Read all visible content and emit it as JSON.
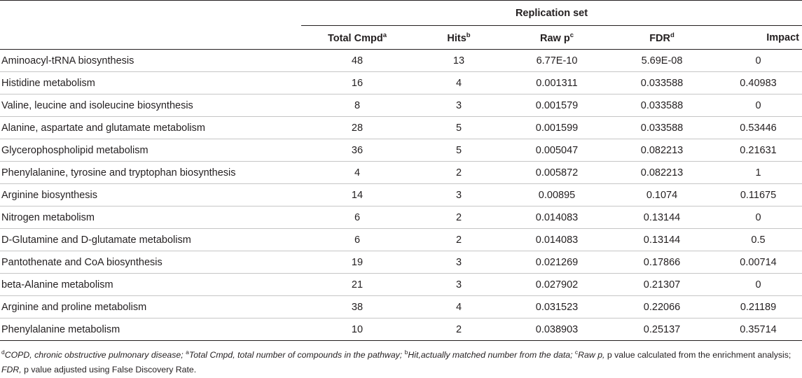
{
  "table": {
    "group_header": "Replication set",
    "columns": [
      {
        "label": "Total Cmpd",
        "sup": "a"
      },
      {
        "label": "Hits",
        "sup": "b"
      },
      {
        "label": "Raw p",
        "sup": "c"
      },
      {
        "label": "FDR",
        "sup": "d"
      },
      {
        "label": "Impact",
        "sup": ""
      }
    ],
    "rows": [
      {
        "name": "Aminoacyl-tRNA biosynthesis",
        "total": "48",
        "hits": "13",
        "raw_p": "6.77E-10",
        "fdr": "5.69E-08",
        "impact": "0"
      },
      {
        "name": "Histidine metabolism",
        "total": "16",
        "hits": "4",
        "raw_p": "0.001311",
        "fdr": "0.033588",
        "impact": "0.40983"
      },
      {
        "name": "Valine, leucine and isoleucine biosynthesis",
        "total": "8",
        "hits": "3",
        "raw_p": "0.001579",
        "fdr": "0.033588",
        "impact": "0"
      },
      {
        "name": "Alanine, aspartate and glutamate metabolism",
        "total": "28",
        "hits": "5",
        "raw_p": "0.001599",
        "fdr": "0.033588",
        "impact": "0.53446"
      },
      {
        "name": "Glycerophospholipid metabolism",
        "total": "36",
        "hits": "5",
        "raw_p": "0.005047",
        "fdr": "0.082213",
        "impact": "0.21631"
      },
      {
        "name": "Phenylalanine, tyrosine and tryptophan biosynthesis",
        "total": "4",
        "hits": "2",
        "raw_p": "0.005872",
        "fdr": "0.082213",
        "impact": "1"
      },
      {
        "name": "Arginine biosynthesis",
        "total": "14",
        "hits": "3",
        "raw_p": "0.00895",
        "fdr": "0.1074",
        "impact": "0.11675"
      },
      {
        "name": "Nitrogen metabolism",
        "total": "6",
        "hits": "2",
        "raw_p": "0.014083",
        "fdr": "0.13144",
        "impact": "0"
      },
      {
        "name": "D-Glutamine and D-glutamate metabolism",
        "total": "6",
        "hits": "2",
        "raw_p": "0.014083",
        "fdr": "0.13144",
        "impact": "0.5"
      },
      {
        "name": "Pantothenate and CoA biosynthesis",
        "total": "19",
        "hits": "3",
        "raw_p": "0.021269",
        "fdr": "0.17866",
        "impact": "0.00714"
      },
      {
        "name": "beta-Alanine metabolism",
        "total": "21",
        "hits": "3",
        "raw_p": "0.027902",
        "fdr": "0.21307",
        "impact": "0"
      },
      {
        "name": "Arginine and proline metabolism",
        "total": "38",
        "hits": "4",
        "raw_p": "0.031523",
        "fdr": "0.22066",
        "impact": "0.21189"
      },
      {
        "name": "Phenylalanine metabolism",
        "total": "10",
        "hits": "2",
        "raw_p": "0.038903",
        "fdr": "0.25137",
        "impact": "0.35714"
      }
    ]
  },
  "footnote": {
    "d_mark": "d",
    "copd": "COPD, chronic obstructive pulmonary disease; ",
    "a_mark": "a",
    "a_text": "Total Cmpd, total number of compounds in the pathway; ",
    "b_mark": "b",
    "b_text": "Hit,actually matched number from the data; ",
    "c_mark": "c",
    "c_text": "Raw p, ",
    "c_text2": "p value calculated from the enrichment analysis; ",
    "fdr_label": "FDR, ",
    "fdr_text": "p value adjusted using False Discovery Rate."
  }
}
